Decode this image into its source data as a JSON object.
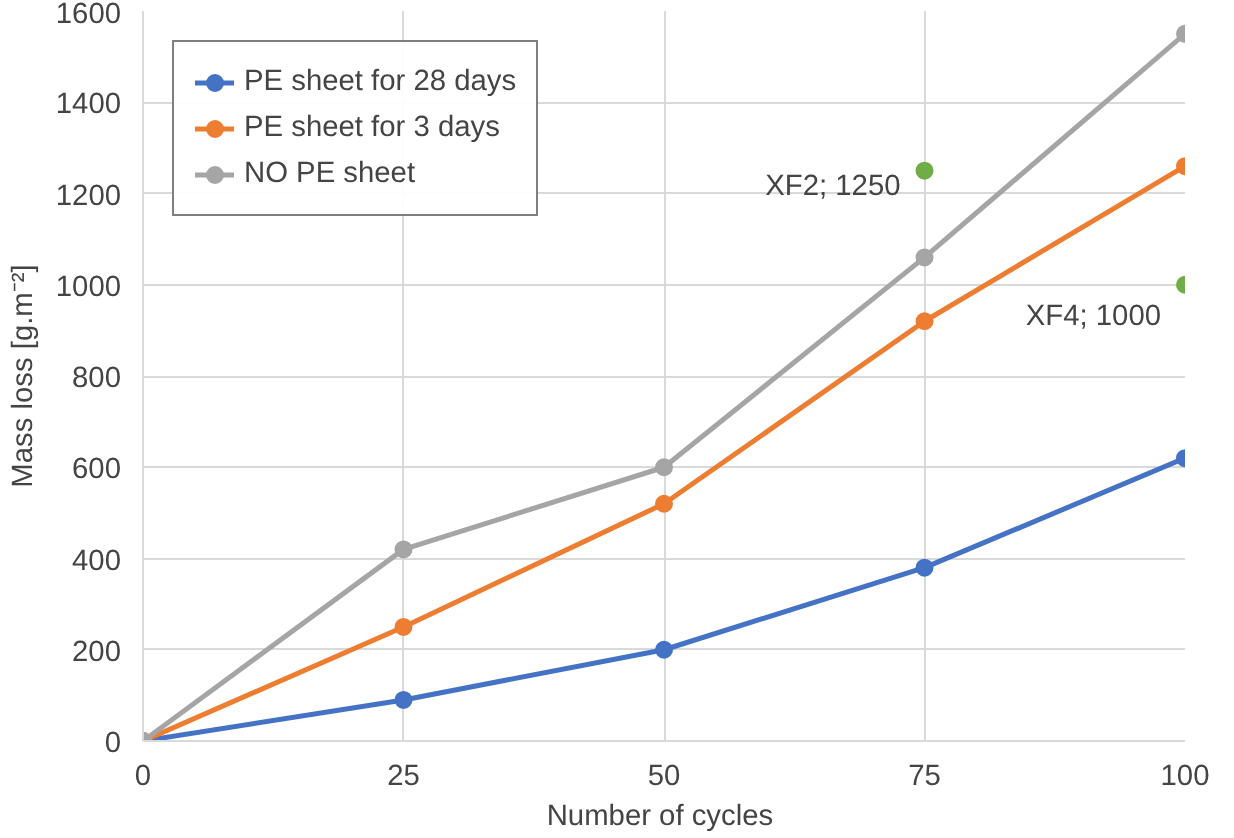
{
  "chart_data": {
    "type": "line",
    "xlabel": "Number  of cycles",
    "ylabel": "Mass loss [g.m⁻²]",
    "x": [
      0,
      25,
      50,
      75,
      100
    ],
    "series": [
      {
        "name": "PE sheet for 28 days",
        "color": "#4472c4",
        "values": [
          0,
          90,
          200,
          380,
          620
        ]
      },
      {
        "name": "PE sheet for 3 days",
        "color": "#ed7d31",
        "values": [
          0,
          250,
          520,
          920,
          1260
        ]
      },
      {
        "name": "NO PE sheet",
        "color": "#a5a5a5",
        "values": [
          0,
          420,
          600,
          1060,
          1550
        ]
      },
      {
        "type": "scatter",
        "color": "#70ad47",
        "x": [
          75,
          100
        ],
        "values": [
          1250,
          1000
        ]
      }
    ],
    "annotations": [
      {
        "text": "XF2; 1250",
        "x": 75,
        "y": 1250
      },
      {
        "text": "XF4; 1000",
        "x": 100,
        "y": 1000
      }
    ],
    "xlim": [
      0,
      100
    ],
    "xticks": [
      0,
      25,
      50,
      75,
      100
    ],
    "ylim": [
      0,
      1600
    ],
    "yticks": [
      0,
      200,
      400,
      600,
      800,
      1000,
      1200,
      1400,
      1600
    ],
    "grid": true,
    "legend": "top left",
    "marker": "circle",
    "line_style": "solid"
  }
}
